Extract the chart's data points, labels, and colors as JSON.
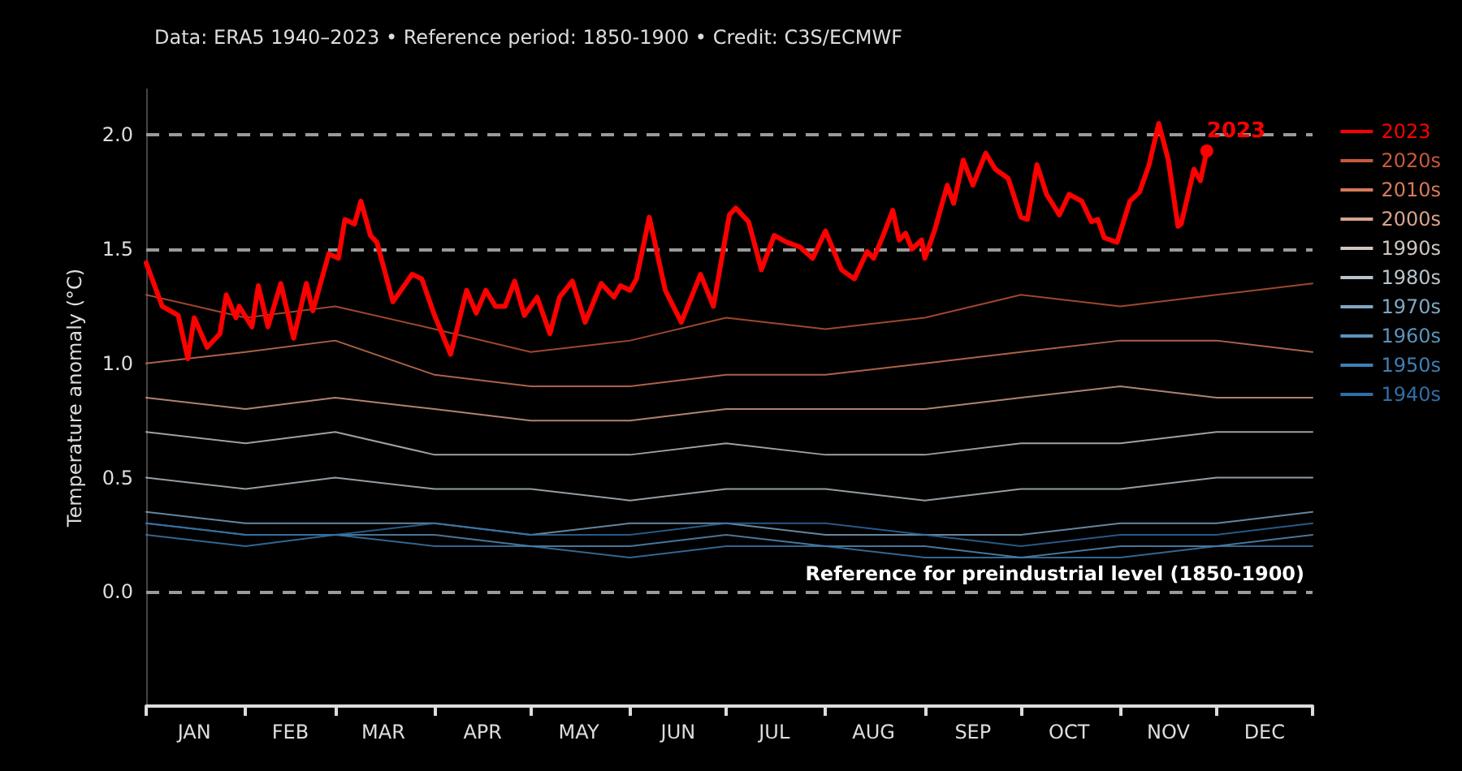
{
  "chart_data": {
    "type": "line",
    "subtitle": "Data: ERA5 1940–2023 • Reference period: 1850-1900 • Credit: C3S/ECMWF",
    "ylabel": "Temperature anomaly (°C)",
    "xlim": [
      "--01-01",
      "--12-31"
    ],
    "xticks": [
      {
        "value": "--01-01",
        "label": null
      },
      {
        "value": "--01-16",
        "label": "JAN"
      },
      {
        "value": "--02-01",
        "label": null
      },
      {
        "value": "--02-15",
        "label": "FEB"
      },
      {
        "value": "--03-01",
        "label": null
      },
      {
        "value": "--03-16",
        "label": "MAR"
      },
      {
        "value": "--04-01",
        "label": null
      },
      {
        "value": "--04-16",
        "label": "APR"
      },
      {
        "value": "--05-01",
        "label": null
      },
      {
        "value": "--05-16",
        "label": "MAY"
      },
      {
        "value": "--06-01",
        "label": null
      },
      {
        "value": "--06-16",
        "label": "JUN"
      },
      {
        "value": "--07-01",
        "label": null
      },
      {
        "value": "--07-16",
        "label": "JUL"
      },
      {
        "value": "--08-01",
        "label": null
      },
      {
        "value": "--08-16",
        "label": "AUG"
      },
      {
        "value": "--09-01",
        "label": null
      },
      {
        "value": "--09-16",
        "label": "SEP"
      },
      {
        "value": "--10-01",
        "label": null
      },
      {
        "value": "--10-16",
        "label": "OCT"
      },
      {
        "value": "--11-01",
        "label": null
      },
      {
        "value": "--11-16",
        "label": "NOV"
      },
      {
        "value": "--12-01",
        "label": null
      },
      {
        "value": "--12-16",
        "label": "DEC"
      },
      {
        "value": "--12-31",
        "label": null
      }
    ],
    "ylim": [
      -0.5,
      2.2
    ],
    "yticks": [
      {
        "value": 0,
        "label": "0.0"
      },
      {
        "value": 0.5,
        "label": "0.5"
      },
      {
        "value": 1,
        "label": "1.0"
      },
      {
        "value": 1.5,
        "label": "1.5"
      },
      {
        "value": 2,
        "label": "2.0"
      }
    ],
    "grid": false,
    "legend": "right",
    "ref_lines": [
      {
        "axis": "y",
        "value": 0,
        "label": "Reference for preindustrial level (1850-1900)",
        "color": "#9a9a9a",
        "line_style": "dashed"
      },
      {
        "axis": "y",
        "value": 1.5,
        "label": null,
        "color": "#9a9a9a",
        "line_style": "dashed"
      },
      {
        "axis": "y",
        "value": 2,
        "label": null,
        "color": "#9a9a9a",
        "line_style": "dashed"
      }
    ],
    "series": [
      {
        "name": "2023",
        "color": "#ff0000",
        "x": [
          "--01-01",
          "--01-06",
          "--01-11",
          "--01-14",
          "--01-16",
          "--01-20",
          "--01-24",
          "--01-26",
          "--01-29",
          "--01-30",
          "--02-03",
          "--02-05",
          "--02-08",
          "--02-12",
          "--02-16",
          "--02-20",
          "--02-22",
          "--02-27",
          "--03-02",
          "--03-04",
          "--03-07",
          "--03-09",
          "--03-12",
          "--03-14",
          "--03-19",
          "--03-25",
          "--03-28",
          "--04-01",
          "--04-06",
          "--04-11",
          "--04-14",
          "--04-17",
          "--04-20",
          "--04-23",
          "--04-26",
          "--04-29",
          "--05-03",
          "--05-07",
          "--05-10",
          "--05-14",
          "--05-18",
          "--05-23",
          "--05-27",
          "--05-29",
          "--06-01",
          "--06-03",
          "--06-07",
          "--06-12",
          "--06-17",
          "--06-23",
          "--06-27",
          "--07-02",
          "--07-04",
          "--07-08",
          "--07-12",
          "--07-16",
          "--07-20",
          "--07-24",
          "--07-28",
          "--08-01",
          "--08-06",
          "--08-10",
          "--08-14",
          "--08-16",
          "--08-19",
          "--08-22",
          "--08-24",
          "--08-26",
          "--08-28",
          "--08-31",
          "--09-01",
          "--09-04",
          "--09-08",
          "--09-10",
          "--09-13",
          "--09-16",
          "--09-20",
          "--09-23",
          "--09-27",
          "--10-01",
          "--10-03",
          "--10-06",
          "--10-09",
          "--10-13",
          "--10-16",
          "--10-20",
          "--10-23",
          "--10-25",
          "--10-27",
          "--10-31",
          "--11-04",
          "--11-07",
          "--11-10",
          "--11-13",
          "--11-16",
          "--11-19",
          "--11-20",
          "--11-24",
          "--11-26",
          "--11-28"
        ],
        "values": [
          1.44,
          1.25,
          1.21,
          1.02,
          1.2,
          1.07,
          1.13,
          1.3,
          1.2,
          1.25,
          1.16,
          1.34,
          1.16,
          1.35,
          1.11,
          1.35,
          1.23,
          1.48,
          1.46,
          1.63,
          1.61,
          1.71,
          1.56,
          1.53,
          1.27,
          1.39,
          1.37,
          1.21,
          1.04,
          1.32,
          1.22,
          1.32,
          1.25,
          1.25,
          1.36,
          1.21,
          1.29,
          1.13,
          1.29,
          1.36,
          1.18,
          1.35,
          1.29,
          1.34,
          1.32,
          1.37,
          1.64,
          1.32,
          1.18,
          1.39,
          1.25,
          1.65,
          1.68,
          1.62,
          1.41,
          1.56,
          1.53,
          1.51,
          1.46,
          1.58,
          1.41,
          1.37,
          1.49,
          1.46,
          1.56,
          1.67,
          1.54,
          1.57,
          1.5,
          1.54,
          1.46,
          1.58,
          1.78,
          1.7,
          1.89,
          1.78,
          1.92,
          1.85,
          1.81,
          1.64,
          1.63,
          1.87,
          1.74,
          1.65,
          1.74,
          1.71,
          1.62,
          1.63,
          1.55,
          1.53,
          1.71,
          1.75,
          1.87,
          2.05,
          1.89,
          1.6,
          1.61,
          1.85,
          1.8,
          1.93
        ]
      },
      {
        "name": "2020s",
        "color": "#c8593a",
        "x": [
          "--01-01",
          "--02-01",
          "--03-01",
          "--04-01",
          "--05-01",
          "--06-01",
          "--07-01",
          "--08-01",
          "--09-01",
          "--10-01",
          "--11-01",
          "--12-01",
          "--12-31"
        ],
        "values": [
          1.3,
          1.2,
          1.25,
          1.15,
          1.05,
          1.1,
          1.2,
          1.15,
          1.2,
          1.3,
          1.25,
          1.3,
          1.35
        ]
      },
      {
        "name": "2010s",
        "color": "#d77a5a",
        "x": [
          "--01-01",
          "--02-01",
          "--03-01",
          "--04-01",
          "--05-01",
          "--06-01",
          "--07-01",
          "--08-01",
          "--09-01",
          "--10-01",
          "--11-01",
          "--12-01",
          "--12-31"
        ],
        "values": [
          1.0,
          1.05,
          1.1,
          0.95,
          0.9,
          0.9,
          0.95,
          0.95,
          1.0,
          1.05,
          1.1,
          1.1,
          1.05
        ]
      },
      {
        "name": "2000s",
        "color": "#d9a48c",
        "x": [
          "--01-01",
          "--02-01",
          "--03-01",
          "--04-01",
          "--05-01",
          "--06-01",
          "--07-01",
          "--08-01",
          "--09-01",
          "--10-01",
          "--11-01",
          "--12-01",
          "--12-31"
        ],
        "values": [
          0.85,
          0.8,
          0.85,
          0.8,
          0.75,
          0.75,
          0.8,
          0.8,
          0.8,
          0.85,
          0.9,
          0.85,
          0.85
        ]
      },
      {
        "name": "1990s",
        "color": "#cfc6c0",
        "x": [
          "--01-01",
          "--02-01",
          "--03-01",
          "--04-01",
          "--05-01",
          "--06-01",
          "--07-01",
          "--08-01",
          "--09-01",
          "--10-01",
          "--11-01",
          "--12-01",
          "--12-31"
        ],
        "values": [
          0.7,
          0.65,
          0.7,
          0.6,
          0.6,
          0.6,
          0.65,
          0.6,
          0.6,
          0.65,
          0.65,
          0.7,
          0.7
        ]
      },
      {
        "name": "1980s",
        "color": "#b9c4cc",
        "x": [
          "--01-01",
          "--02-01",
          "--03-01",
          "--04-01",
          "--05-01",
          "--06-01",
          "--07-01",
          "--08-01",
          "--09-01",
          "--10-01",
          "--11-01",
          "--12-01",
          "--12-31"
        ],
        "values": [
          0.5,
          0.45,
          0.5,
          0.45,
          0.45,
          0.4,
          0.45,
          0.45,
          0.4,
          0.45,
          0.45,
          0.5,
          0.5
        ]
      },
      {
        "name": "1970s",
        "color": "#7ea8c4",
        "x": [
          "--01-01",
          "--02-01",
          "--03-01",
          "--04-01",
          "--05-01",
          "--06-01",
          "--07-01",
          "--08-01",
          "--09-01",
          "--10-01",
          "--11-01",
          "--12-01",
          "--12-31"
        ],
        "values": [
          0.35,
          0.3,
          0.3,
          0.3,
          0.25,
          0.3,
          0.3,
          0.25,
          0.25,
          0.25,
          0.3,
          0.3,
          0.35
        ]
      },
      {
        "name": "1960s",
        "color": "#5a94be",
        "x": [
          "--01-01",
          "--02-01",
          "--03-01",
          "--04-01",
          "--05-01",
          "--06-01",
          "--07-01",
          "--08-01",
          "--09-01",
          "--10-01",
          "--11-01",
          "--12-01",
          "--12-31"
        ],
        "values": [
          0.3,
          0.25,
          0.25,
          0.25,
          0.2,
          0.2,
          0.25,
          0.2,
          0.2,
          0.15,
          0.2,
          0.2,
          0.25
        ]
      },
      {
        "name": "1950s",
        "color": "#3f80b5",
        "x": [
          "--01-01",
          "--02-01",
          "--03-01",
          "--04-01",
          "--05-01",
          "--06-01",
          "--07-01",
          "--08-01",
          "--09-01",
          "--10-01",
          "--11-01",
          "--12-01",
          "--12-31"
        ],
        "values": [
          0.25,
          0.2,
          0.25,
          0.2,
          0.2,
          0.15,
          0.2,
          0.2,
          0.15,
          0.15,
          0.15,
          0.2,
          0.2
        ]
      },
      {
        "name": "1940s",
        "color": "#2f6fa8",
        "x": [
          "--01-01",
          "--02-01",
          "--03-01",
          "--04-01",
          "--05-01",
          "--06-01",
          "--07-01",
          "--08-01",
          "--09-01",
          "--10-01",
          "--11-01",
          "--12-01",
          "--12-31"
        ],
        "values": [
          0.3,
          0.25,
          0.25,
          0.3,
          0.25,
          0.25,
          0.3,
          0.3,
          0.25,
          0.2,
          0.25,
          0.25,
          0.3
        ]
      }
    ]
  }
}
